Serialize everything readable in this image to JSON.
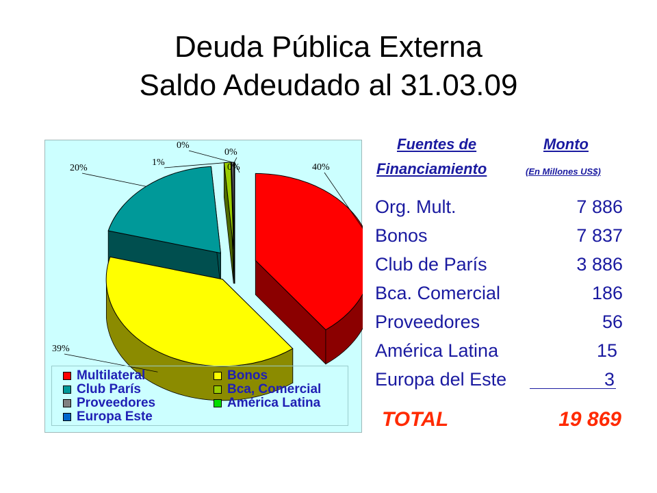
{
  "title_line1": "Deuda Pública Externa",
  "title_line2": "Saldo Adeudado al 31.03.09",
  "table": {
    "header_source_1": "Fuentes de",
    "header_source_2": "Financiamiento",
    "header_amount": "Monto",
    "header_unit": "(En Millones US$)",
    "rows": [
      {
        "label": "Org. Mult.",
        "value": "7 886"
      },
      {
        "label": "Bonos",
        "value": "7 837"
      },
      {
        "label": "Club de París",
        "value": "3 886"
      },
      {
        "label": "Bca. Comercial",
        "value": "186"
      },
      {
        "label": "Proveedores",
        "value": "56"
      },
      {
        "label": "América Latina",
        "value": "15"
      },
      {
        "label": "Europa del Este",
        "value": "3"
      }
    ],
    "total_label": "TOTAL",
    "total_value": "19 869"
  },
  "legend": [
    {
      "label": "Multilateral",
      "color": "#ff0000"
    },
    {
      "label": "Bonos",
      "color": "#ffff00"
    },
    {
      "label": "Club París",
      "color": "#009999"
    },
    {
      "label": "Bca, Comercial",
      "color": "#99cc00"
    },
    {
      "label": "Proveedores",
      "color": "#808080"
    },
    {
      "label": "América Latina",
      "color": "#00dd00"
    },
    {
      "label": "Europa Este",
      "color": "#0066cc"
    }
  ],
  "chart_data": {
    "type": "pie",
    "categories": [
      "Multilateral",
      "Bonos",
      "Club París",
      "Bca, Comercial",
      "Proveedores",
      "América Latina",
      "Europa Este"
    ],
    "values": [
      7886,
      7837,
      3886,
      186,
      56,
      15,
      3
    ],
    "data_labels": [
      "40%",
      "39%",
      "20%",
      "1%",
      "0%",
      "0%",
      "0%"
    ],
    "colors": [
      "#ff0000",
      "#ffff00",
      "#009999",
      "#99cc00",
      "#808080",
      "#00dd00",
      "#0066cc"
    ],
    "side_colors": [
      "#8b0000",
      "#8b8b00",
      "#004f4f",
      "#4e6a00",
      "#404040",
      "#006e00",
      "#003366"
    ],
    "exploded": true,
    "three_d": true,
    "legend_position": "bottom"
  }
}
